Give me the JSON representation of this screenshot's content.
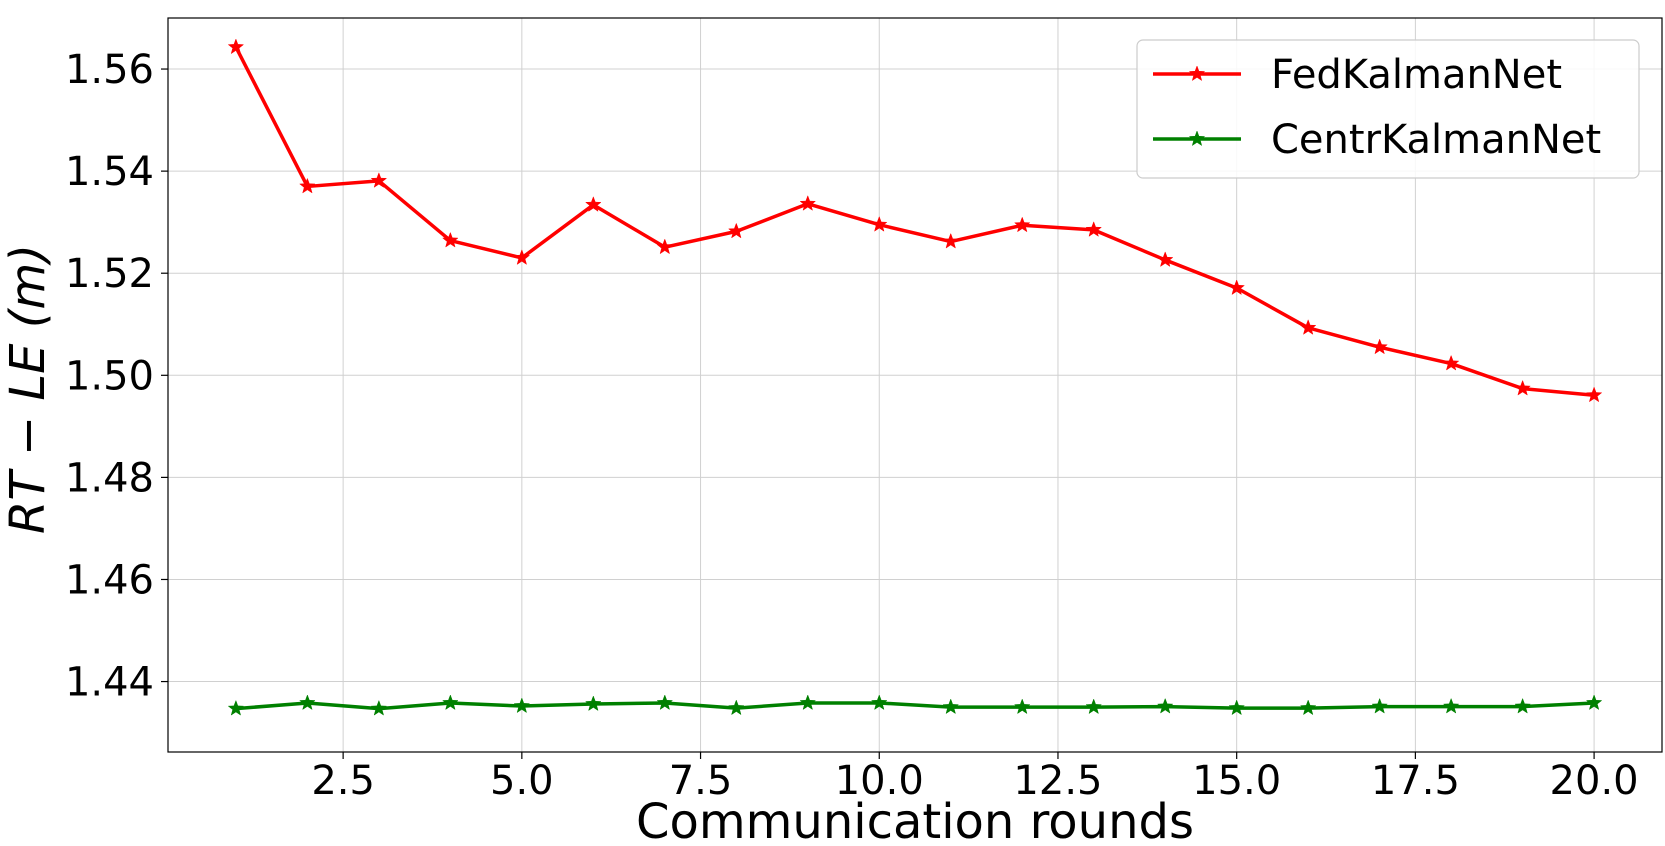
{
  "chart_data": {
    "type": "line",
    "title": "",
    "xlabel": "Communication rounds",
    "ylabel": "RT − LE (m)",
    "xlim": [
      0.05,
      20.95
    ],
    "ylim": [
      1.4262,
      1.57
    ],
    "xticks": [
      2.5,
      5.0,
      7.5,
      10.0,
      12.5,
      15.0,
      17.5,
      20.0
    ],
    "xtick_labels": [
      "2.5",
      "5.0",
      "7.5",
      "10.0",
      "12.5",
      "15.0",
      "17.5",
      "20.0"
    ],
    "yticks": [
      1.44,
      1.46,
      1.48,
      1.5,
      1.52,
      1.54,
      1.56
    ],
    "ytick_labels": [
      "1.44",
      "1.46",
      "1.48",
      "1.50",
      "1.52",
      "1.54",
      "1.56"
    ],
    "grid": true,
    "legend_position": "top-right",
    "x": [
      1,
      2,
      3,
      4,
      5,
      6,
      7,
      8,
      9,
      10,
      11,
      12,
      13,
      14,
      15,
      16,
      17,
      18,
      19,
      20
    ],
    "series": [
      {
        "name": "FedKalmanNet",
        "color": "#ff0000",
        "marker": "star",
        "values": [
          1.5643,
          1.537,
          1.5381,
          1.5264,
          1.523,
          1.5334,
          1.5251,
          1.5282,
          1.5336,
          1.5295,
          1.5262,
          1.5294,
          1.5285,
          1.5226,
          1.5171,
          1.5093,
          1.5055,
          1.5023,
          1.4974,
          1.4961
        ]
      },
      {
        "name": "CentrKalmanNet",
        "color": "#008000",
        "marker": "star",
        "values": [
          1.4347,
          1.4358,
          1.4347,
          1.4358,
          1.4352,
          1.4356,
          1.4358,
          1.4348,
          1.4358,
          1.4358,
          1.435,
          1.435,
          1.435,
          1.4351,
          1.4348,
          1.4348,
          1.4351,
          1.4351,
          1.4351,
          1.4358
        ]
      }
    ]
  }
}
